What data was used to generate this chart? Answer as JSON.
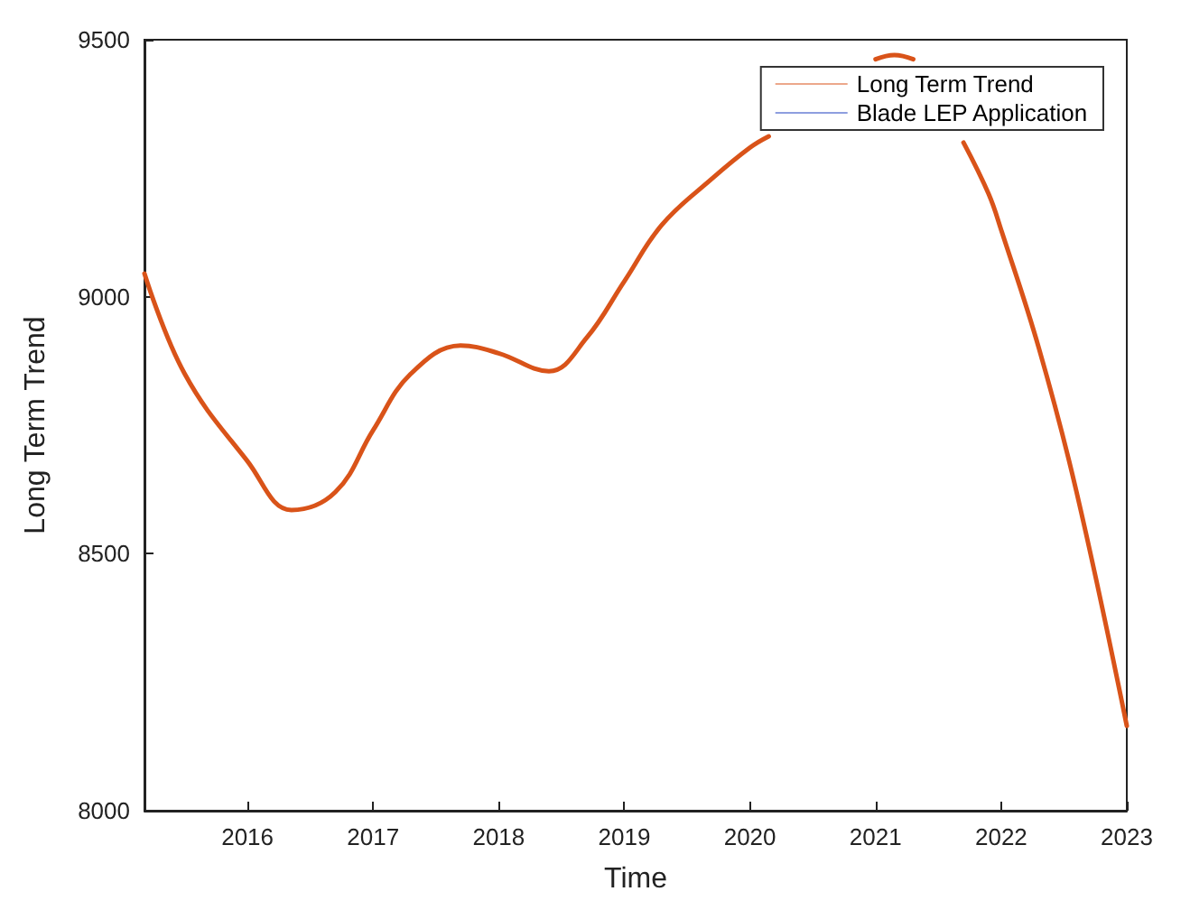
{
  "chart_data": {
    "type": "line",
    "xlabel": "Time",
    "ylabel": "Long Term Trend",
    "xlim": [
      2015.18,
      2023
    ],
    "xticks": [
      2016,
      2017,
      2018,
      2019,
      2020,
      2021,
      2022,
      2023
    ],
    "ylim": [
      8000,
      9500
    ],
    "yticks": [
      8000,
      8500,
      9000,
      9500
    ],
    "grid": false,
    "legend": "top right",
    "marker": "none",
    "x": [
      2015.18,
      2015.5,
      2016,
      2016.35,
      2016.7,
      2017,
      2017.3,
      2017.7,
      2018,
      2018.4,
      2018.7,
      2019,
      2019.3,
      2019.7,
      2020,
      2020.15,
      2020.5,
      2020.9,
      2021.0,
      2021.15,
      2021.3,
      2021.5,
      2021.7,
      2021.9,
      2022,
      2022.3,
      2022.6,
      2023
    ],
    "series": [
      {
        "name": "Long Term Trend",
        "color": "#d95319",
        "line_style": "solid",
        "values": [
          9045,
          8850,
          8680,
          8585,
          8620,
          8740,
          8850,
          8905,
          8890,
          8855,
          8920,
          9030,
          9140,
          9230,
          9290,
          9312,
          null,
          null,
          9462,
          9470,
          9462,
          null,
          9300,
          9200,
          9130,
          8900,
          8620,
          8165
        ]
      },
      {
        "name": "Blade LEP Application",
        "color": "#1f3fbf",
        "line_style": "dashed",
        "values": [
          null,
          null,
          null,
          null,
          null,
          null,
          null,
          null,
          null,
          null,
          null,
          null,
          null,
          null,
          null,
          null,
          null,
          null,
          null,
          null,
          null,
          null,
          null,
          null,
          null,
          null,
          null,
          null
        ]
      }
    ]
  }
}
